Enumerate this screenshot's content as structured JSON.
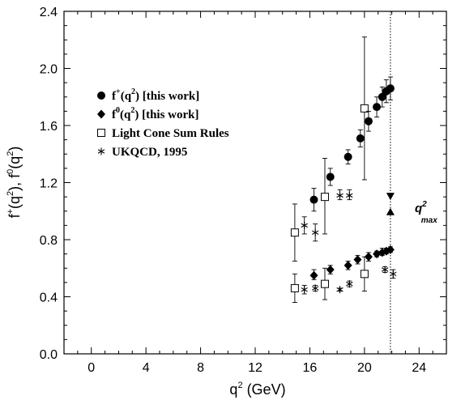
{
  "chart_data": {
    "type": "scatter",
    "title": "",
    "xlabel": {
      "base": "q",
      "sup": "2",
      "rest": " (GeV)"
    },
    "ylabel": {
      "p1": "f",
      "s1": "+",
      "p2": "(q",
      "s2": "2",
      "p3": "), f",
      "s3": "0",
      "p4": "(q",
      "s4": "2",
      "p5": ")"
    },
    "xlim": [
      -2,
      26
    ],
    "ylim": [
      0,
      2.4
    ],
    "xticks": [
      0,
      4,
      8,
      12,
      16,
      20,
      24
    ],
    "xtick_labels": [
      "0",
      "4",
      "8",
      "12",
      "16",
      "20",
      "24"
    ],
    "yticks": [
      0.0,
      0.4,
      0.8,
      1.2,
      1.6,
      2.0,
      2.4
    ],
    "ytick_labels": [
      "0.0",
      "0.4",
      "0.8",
      "1.2",
      "1.6",
      "2.0",
      "2.4"
    ],
    "grid": false,
    "legend_position": "upper-left",
    "legend": [
      {
        "marker": "filled-circle",
        "pre": "f",
        "sup": "+",
        "post": "(q",
        "sup2": "2",
        "post2": ") [this work]"
      },
      {
        "marker": "filled-diamond",
        "pre": "f",
        "sup": "0",
        "post": "(q",
        "sup2": "2",
        "post2": ") [this work]"
      },
      {
        "marker": "open-square",
        "pre": "Light Cone Sum Rules",
        "sup": "",
        "post": "",
        "sup2": "",
        "post2": ""
      },
      {
        "marker": "asterisk",
        "pre": "UKQCD, 1995",
        "sup": "",
        "post": "",
        "sup2": "",
        "post2": ""
      }
    ],
    "annotation": {
      "base": "q",
      "sup": "2",
      "sub": "max"
    },
    "qmax_line_x": 21.9,
    "qmax_markers": [
      {
        "marker": "triangle-down",
        "x": 21.9,
        "y": 1.1
      },
      {
        "marker": "triangle-up",
        "x": 21.9,
        "y": 1.0
      }
    ],
    "series": [
      {
        "name": "f+(q2) [this work]",
        "marker": "filled-circle",
        "points": [
          {
            "x": 16.3,
            "y": 1.08,
            "lo": 1.0,
            "hi": 1.16
          },
          {
            "x": 17.5,
            "y": 1.24,
            "lo": 1.18,
            "hi": 1.3
          },
          {
            "x": 18.8,
            "y": 1.38,
            "lo": 1.33,
            "hi": 1.43
          },
          {
            "x": 19.7,
            "y": 1.51,
            "lo": 1.45,
            "hi": 1.57
          },
          {
            "x": 20.3,
            "y": 1.63,
            "lo": 1.56,
            "hi": 1.7
          },
          {
            "x": 20.9,
            "y": 1.73,
            "lo": 1.66,
            "hi": 1.8
          },
          {
            "x": 21.3,
            "y": 1.8,
            "lo": 1.73,
            "hi": 1.87
          },
          {
            "x": 21.6,
            "y": 1.84,
            "lo": 1.76,
            "hi": 1.92
          },
          {
            "x": 21.9,
            "y": 1.86,
            "lo": 1.78,
            "hi": 1.94
          }
        ]
      },
      {
        "name": "f0(q2) [this work]",
        "marker": "filled-diamond",
        "points": [
          {
            "x": 16.3,
            "y": 0.55,
            "lo": 0.52,
            "hi": 0.59
          },
          {
            "x": 17.5,
            "y": 0.59,
            "lo": 0.56,
            "hi": 0.62
          },
          {
            "x": 18.8,
            "y": 0.62,
            "lo": 0.59,
            "hi": 0.65
          },
          {
            "x": 19.5,
            "y": 0.66,
            "lo": 0.63,
            "hi": 0.69
          },
          {
            "x": 20.3,
            "y": 0.68,
            "lo": 0.65,
            "hi": 0.71
          },
          {
            "x": 20.9,
            "y": 0.7,
            "lo": 0.68,
            "hi": 0.72
          },
          {
            "x": 21.3,
            "y": 0.71,
            "lo": 0.69,
            "hi": 0.74
          },
          {
            "x": 21.6,
            "y": 0.72,
            "lo": 0.7,
            "hi": 0.74
          },
          {
            "x": 21.9,
            "y": 0.73,
            "lo": 0.71,
            "hi": 0.75
          }
        ]
      },
      {
        "name": "Light Cone Sum Rules",
        "marker": "open-square",
        "points": [
          {
            "x": 14.9,
            "y": 0.85,
            "lo": 0.65,
            "hi": 1.05
          },
          {
            "x": 17.1,
            "y": 1.1,
            "lo": 0.84,
            "hi": 1.37
          },
          {
            "x": 20.0,
            "y": 1.72,
            "lo": 1.22,
            "hi": 2.22
          },
          {
            "x": 14.9,
            "y": 0.46,
            "lo": 0.36,
            "hi": 0.56
          },
          {
            "x": 17.1,
            "y": 0.49,
            "lo": 0.38,
            "hi": 0.6
          },
          {
            "x": 20.0,
            "y": 0.56,
            "lo": 0.44,
            "hi": 0.68
          }
        ]
      },
      {
        "name": "UKQCD, 1995",
        "marker": "asterisk",
        "points": [
          {
            "x": 15.6,
            "y": 0.9,
            "lo": 0.84,
            "hi": 0.96
          },
          {
            "x": 16.4,
            "y": 0.85,
            "lo": 0.79,
            "hi": 0.91
          },
          {
            "x": 18.2,
            "y": 1.11,
            "lo": 1.08,
            "hi": 1.15
          },
          {
            "x": 18.9,
            "y": 1.11,
            "lo": 1.08,
            "hi": 1.15
          },
          {
            "x": 15.6,
            "y": 0.45,
            "lo": 0.42,
            "hi": 0.48
          },
          {
            "x": 16.4,
            "y": 0.46,
            "lo": 0.44,
            "hi": 0.48
          },
          {
            "x": 18.2,
            "y": 0.45,
            "lo": 0.44,
            "hi": 0.46
          },
          {
            "x": 18.9,
            "y": 0.49,
            "lo": 0.47,
            "hi": 0.51
          },
          {
            "x": 21.5,
            "y": 0.59,
            "lo": 0.57,
            "hi": 0.61
          },
          {
            "x": 22.1,
            "y": 0.56,
            "lo": 0.53,
            "hi": 0.59
          }
        ]
      }
    ]
  }
}
